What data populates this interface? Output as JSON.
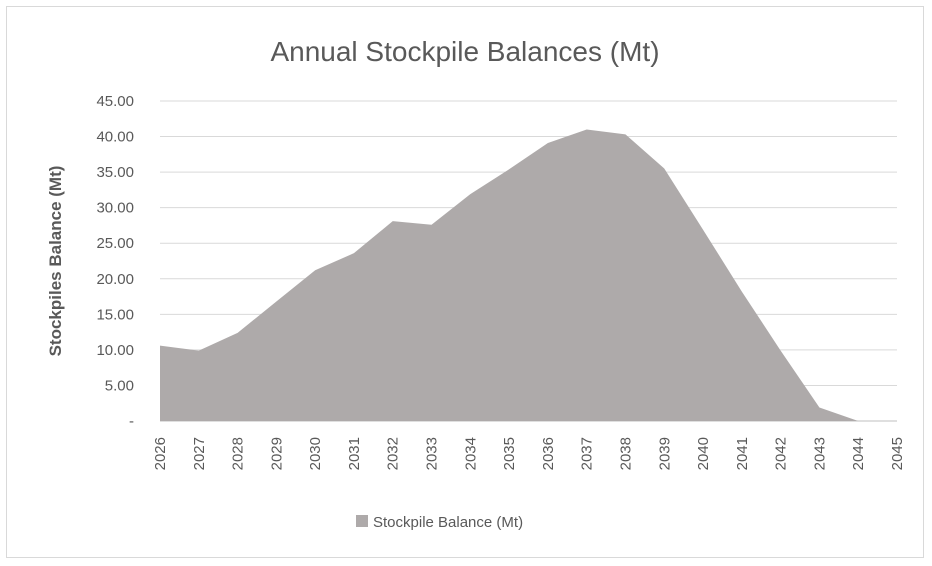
{
  "chart_data": {
    "type": "area",
    "title": "Annual Stockpile Balances (Mt)",
    "xlabel": "",
    "ylabel": "Stockpiles Balance (Mt)",
    "x": [
      "2026",
      "2027",
      "2028",
      "2029",
      "2030",
      "2031",
      "2032",
      "2033",
      "2034",
      "2035",
      "2036",
      "2037",
      "2038",
      "2039",
      "2040",
      "2041",
      "2042",
      "2043",
      "2044",
      "2045"
    ],
    "y_ticks": [
      "-",
      "5.00",
      "10.00",
      "15.00",
      "20.00",
      "25.00",
      "30.00",
      "35.00",
      "40.00",
      "45.00"
    ],
    "ylim": [
      0,
      45
    ],
    "grid": true,
    "legend_position": "bottom",
    "series": [
      {
        "name": "Stockpile Balance (Mt)",
        "color": "#aeaaaa",
        "values": [
          10.6,
          9.9,
          12.4,
          16.8,
          21.2,
          23.6,
          28.1,
          27.6,
          31.9,
          35.4,
          39.1,
          41.0,
          40.3,
          35.5,
          26.9,
          18.2,
          9.9,
          1.9,
          0.0,
          null
        ]
      }
    ]
  }
}
